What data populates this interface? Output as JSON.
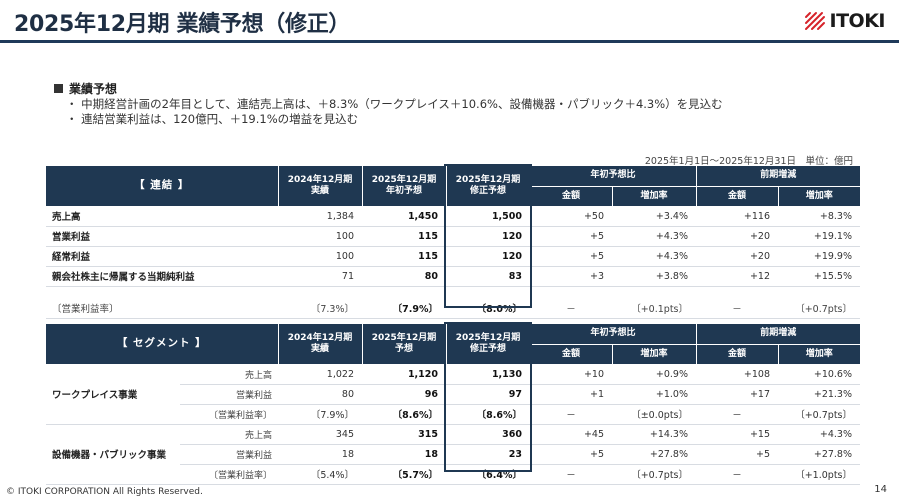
{
  "page": {
    "title": "2025年12月期 業績予想（修正）",
    "logo_text": "ITOKI",
    "section_title": "業績予想",
    "bullets": [
      "・ 中期経営計画の2年目として、連結売上高は、＋8.3%（ワークプレイス＋10.6%、設備機器・パブリック＋4.3%）を見込む",
      "・ 連結営業利益は、120億円、＋19.1%の増益を見込む"
    ],
    "period_note": "2025年1月1日～2025年12月31日　単位：億円",
    "footer": "© ITOKI CORPORATION All Rights Reserved.",
    "page_number": "14"
  },
  "table1": {
    "corner": "【 連結 】",
    "col_fy2024": "2024年12月期\n実績",
    "col_fy2025_initial": "2025年12月期\n年初予想",
    "col_fy2025_revised": "2025年12月期\n修正予想",
    "group_vs_initial": "年初予想比",
    "group_yoy": "前期増減",
    "sub_amount": "金額",
    "sub_rate": "増加率",
    "rows": [
      {
        "label": "売上高",
        "fy2024": "1,384",
        "initial": "1,450",
        "revised": "1,500",
        "vi_amt": "+50",
        "vi_rate": "+3.4%",
        "yoy_amt": "+116",
        "yoy_rate": "+8.3%"
      },
      {
        "label": "営業利益",
        "fy2024": "100",
        "initial": "115",
        "revised": "120",
        "vi_amt": "+5",
        "vi_rate": "+4.3%",
        "yoy_amt": "+20",
        "yoy_rate": "+19.1%"
      },
      {
        "label": "経常利益",
        "fy2024": "100",
        "initial": "115",
        "revised": "120",
        "vi_amt": "+5",
        "vi_rate": "+4.3%",
        "yoy_amt": "+20",
        "yoy_rate": "+19.9%"
      },
      {
        "label": "親会社株主に帰属する当期純利益",
        "fy2024": "71",
        "initial": "80",
        "revised": "83",
        "vi_amt": "+3",
        "vi_rate": "+3.8%",
        "yoy_amt": "+12",
        "yoy_rate": "+15.5%"
      }
    ],
    "ratio": {
      "label": "〔営業利益率〕",
      "fy2024": "〔7.3%〕",
      "initial": "〔7.9%〕",
      "revised": "〔8.0%〕",
      "vi_amt": "－",
      "vi_rate": "〔+0.1pts〕",
      "yoy_amt": "－",
      "yoy_rate": "〔+0.7pts〕"
    }
  },
  "table2": {
    "corner": "【 セグメント 】",
    "col_fy2024": "2024年12月期\n実績",
    "col_fy2025_initial": "2025年12月期\n予想",
    "col_fy2025_revised": "2025年12月期\n修正予想",
    "group_vs_initial": "年初予想比",
    "group_yoy": "前期増減",
    "sub_amount": "金額",
    "sub_rate": "増加率",
    "segments": [
      {
        "name": "ワークプレイス事業",
        "rows": [
          {
            "label": "売上高",
            "fy2024": "1,022",
            "initial": "1,120",
            "revised": "1,130",
            "vi_amt": "+10",
            "vi_rate": "+0.9%",
            "yoy_amt": "+108",
            "yoy_rate": "+10.6%"
          },
          {
            "label": "営業利益",
            "fy2024": "80",
            "initial": "96",
            "revised": "97",
            "vi_amt": "+1",
            "vi_rate": "+1.0%",
            "yoy_amt": "+17",
            "yoy_rate": "+21.3%"
          },
          {
            "label": "〔営業利益率〕",
            "fy2024": "〔7.9%〕",
            "initial": "〔8.6%〕",
            "revised": "〔8.6%〕",
            "vi_amt": "－",
            "vi_rate": "〔±0.0pts〕",
            "yoy_amt": "－",
            "yoy_rate": "〔+0.7pts〕"
          }
        ]
      },
      {
        "name": "設備機器・パブリック事業",
        "rows": [
          {
            "label": "売上高",
            "fy2024": "345",
            "initial": "315",
            "revised": "360",
            "vi_amt": "+45",
            "vi_rate": "+14.3%",
            "yoy_amt": "+15",
            "yoy_rate": "+4.3%"
          },
          {
            "label": "営業利益",
            "fy2024": "18",
            "initial": "18",
            "revised": "23",
            "vi_amt": "+5",
            "vi_rate": "+27.8%",
            "yoy_amt": "+5",
            "yoy_rate": "+27.8%"
          },
          {
            "label": "〔営業利益率〕",
            "fy2024": "〔5.4%〕",
            "initial": "〔5.7%〕",
            "revised": "〔6.4%〕",
            "vi_amt": "－",
            "vi_rate": "〔+0.7pts〕",
            "yoy_amt": "－",
            "yoy_rate": "〔+1.0pts〕"
          }
        ]
      }
    ]
  },
  "colors": {
    "header_navy": "#1f3852",
    "title_navy": "#1f2f44",
    "logo_red": "#d6232a"
  }
}
